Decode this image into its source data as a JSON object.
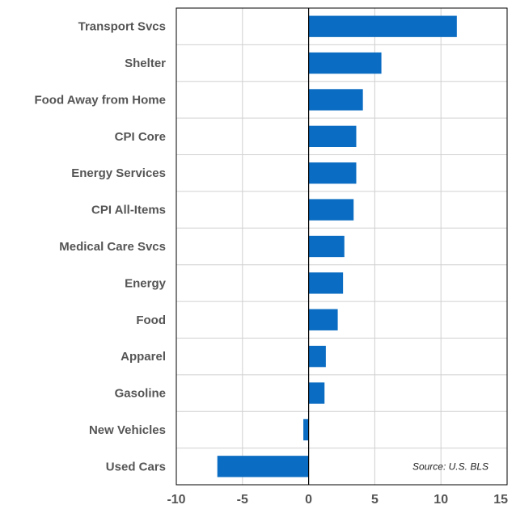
{
  "chart_data": {
    "type": "bar",
    "orientation": "horizontal",
    "categories": [
      "Transport Svcs",
      "Shelter",
      "Food Away from Home",
      "CPI Core",
      "Energy Services",
      "CPI All-Items",
      "Medical Care Svcs",
      "Energy",
      "Food",
      "Apparel",
      "Gasoline",
      "New Vehicles",
      "Used Cars"
    ],
    "values": [
      11.2,
      5.5,
      4.1,
      3.6,
      3.6,
      3.4,
      2.7,
      2.6,
      2.2,
      1.3,
      1.2,
      -0.4,
      -6.9
    ],
    "xlim": [
      -10,
      15
    ],
    "xticks": [
      "-10",
      "-5",
      "0",
      "5",
      "10",
      "15"
    ],
    "grid": true,
    "bar_color": "#0a6cc2",
    "title": "",
    "xlabel": "",
    "ylabel": "",
    "annotation": "Source: U.S. BLS"
  }
}
